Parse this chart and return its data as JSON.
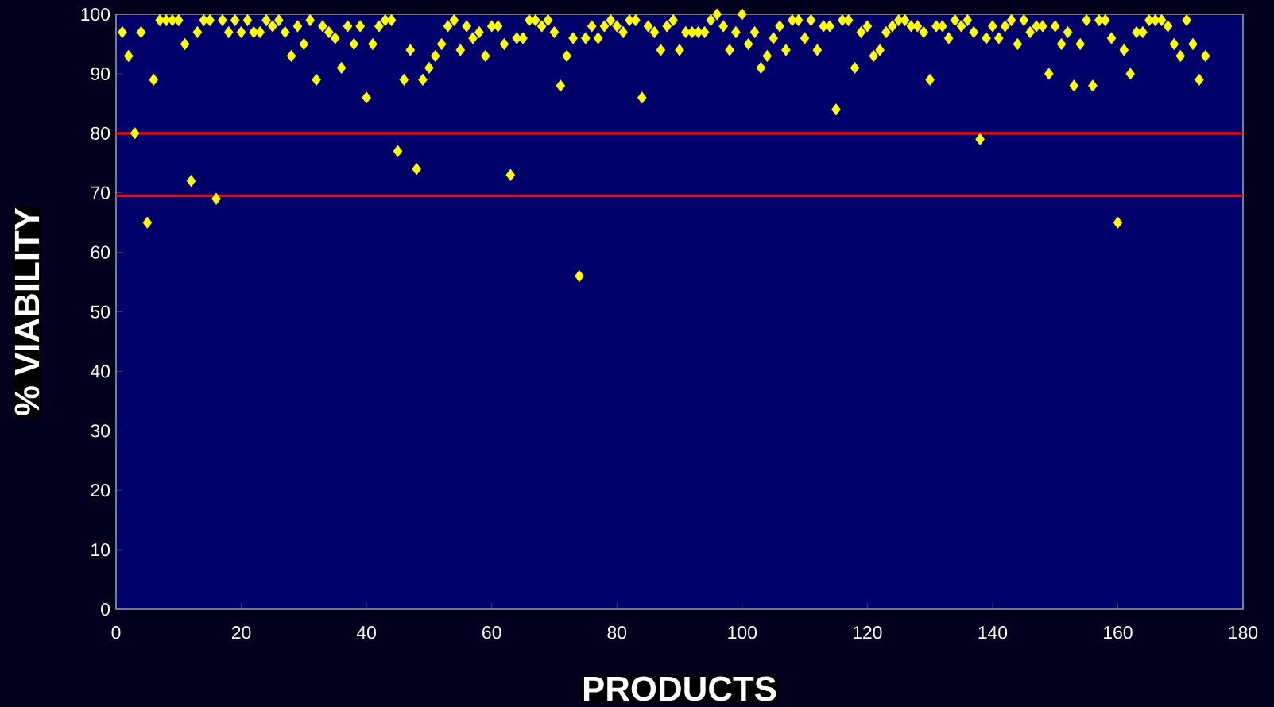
{
  "chart_data": {
    "type": "scatter",
    "xlabel": "PRODUCTS",
    "ylabel": "% VIABILITY",
    "x": [
      1,
      2,
      3,
      4,
      5,
      6,
      7,
      8,
      9,
      10,
      11,
      12,
      13,
      14,
      15,
      16,
      17,
      18,
      19,
      20,
      21,
      22,
      23,
      24,
      25,
      26,
      27,
      28,
      29,
      30,
      31,
      32,
      33,
      34,
      35,
      36,
      37,
      38,
      39,
      40,
      41,
      42,
      43,
      44,
      45,
      46,
      47,
      48,
      49,
      50,
      51,
      52,
      53,
      54,
      55,
      56,
      57,
      58,
      59,
      60,
      61,
      62,
      63,
      64,
      65,
      66,
      67,
      68,
      69,
      70,
      71,
      72,
      73,
      74,
      75,
      76,
      77,
      78,
      79,
      80,
      81,
      82,
      83,
      84,
      85,
      86,
      87,
      88,
      89,
      90,
      91,
      92,
      93,
      94,
      95,
      96,
      97,
      98,
      99,
      100,
      101,
      102,
      103,
      104,
      105,
      106,
      107,
      108,
      109,
      110,
      111,
      112,
      113,
      114,
      115,
      116,
      117,
      118,
      119,
      120,
      121,
      122,
      123,
      124,
      125,
      126,
      127,
      128,
      129,
      130,
      131,
      132,
      133,
      134,
      135,
      136,
      137,
      138,
      139,
      140,
      141,
      142,
      143,
      144,
      145,
      146,
      147,
      148,
      149,
      150,
      151,
      152,
      153,
      154,
      155,
      156,
      157,
      158,
      159,
      160,
      161,
      162,
      163,
      164,
      165,
      166,
      167,
      168,
      169,
      170,
      171,
      172,
      173,
      174
    ],
    "series": [
      {
        "color": "#ffff00",
        "values": [
          97,
          93,
          80,
          97,
          65,
          89,
          99,
          99,
          99,
          99,
          95,
          72,
          97,
          99,
          99,
          69,
          99,
          97,
          99,
          97,
          99,
          97,
          97,
          99,
          98,
          99,
          97,
          93,
          98,
          95,
          99,
          89,
          98,
          97,
          96,
          91,
          98,
          95,
          98,
          86,
          95,
          98,
          99,
          99,
          77,
          89,
          94,
          74,
          89,
          91,
          93,
          95,
          98,
          99,
          94,
          98,
          96,
          97,
          93,
          98,
          98,
          95,
          73,
          96,
          96,
          99,
          99,
          98,
          99,
          97,
          88,
          93,
          96,
          56,
          96,
          98,
          96,
          98,
          99,
          98,
          97,
          99,
          99,
          86,
          98,
          97,
          94,
          98,
          99,
          94,
          97,
          97,
          97,
          97,
          99,
          100,
          98,
          94,
          97,
          100,
          95,
          97,
          91,
          93,
          96,
          98,
          94,
          99,
          99,
          96,
          99,
          94,
          98,
          98,
          84,
          99,
          99,
          91,
          97,
          98,
          93,
          94,
          97,
          98,
          99,
          99,
          98,
          98,
          97,
          89,
          98,
          98,
          96,
          99,
          98,
          99,
          97,
          79,
          96,
          98,
          96,
          98,
          99,
          95,
          99,
          97,
          98,
          98,
          90,
          98,
          95,
          97,
          88,
          95,
          99,
          88,
          99,
          99,
          96,
          65,
          94,
          90,
          97,
          97,
          99,
          99,
          99,
          98,
          95,
          93,
          99,
          95,
          89,
          93
        ]
      }
    ],
    "marker": "diamond",
    "xlim": [
      0,
      180
    ],
    "xticks": [
      0,
      20,
      40,
      60,
      80,
      100,
      120,
      140,
      160,
      180
    ],
    "ylim": [
      0,
      100
    ],
    "yticks": [
      0,
      10,
      20,
      30,
      40,
      50,
      60,
      70,
      80,
      90,
      100
    ],
    "ref_lines": [
      {
        "axis": "y",
        "value": 80,
        "color": "#ff0000"
      },
      {
        "axis": "y",
        "value": 69.5,
        "color": "#ff0000"
      }
    ]
  }
}
